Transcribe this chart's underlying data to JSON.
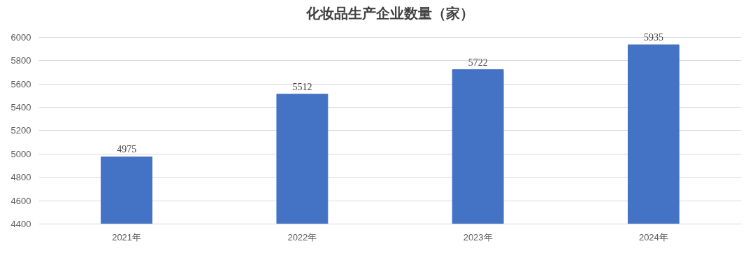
{
  "chart_data": {
    "type": "bar",
    "title": "化妆品生产企业数量（家）",
    "categories": [
      "2021年",
      "2022年",
      "2023年",
      "2024年"
    ],
    "values": [
      4975,
      5512,
      5722,
      5935
    ],
    "color": "#4472c4",
    "ylim": [
      4400,
      6000
    ],
    "yticks": [
      4400,
      4600,
      4800,
      5000,
      5200,
      5400,
      5600,
      5800,
      6000
    ],
    "grid": "y",
    "data_labels": true
  }
}
